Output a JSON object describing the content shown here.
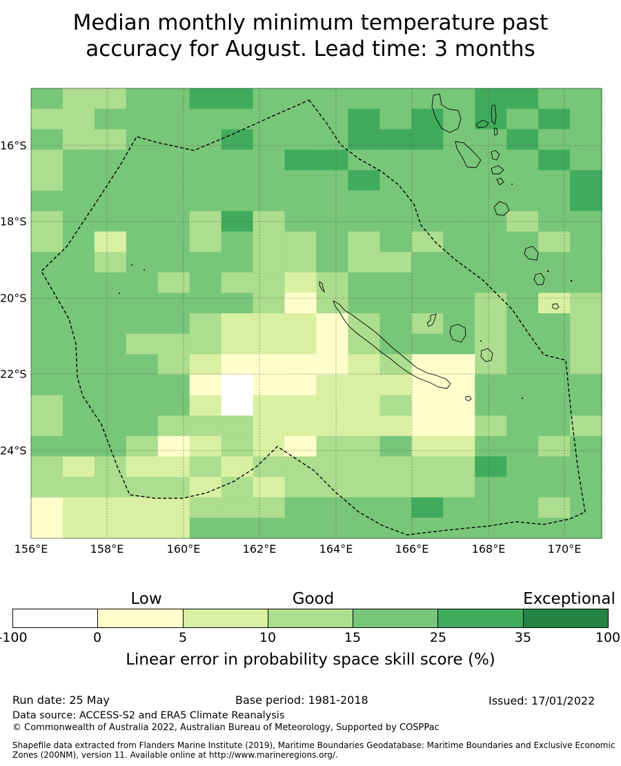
{
  "title": {
    "line1": "Median monthly minimum temperature past",
    "line2": "accuracy for August. Lead time: 3 months"
  },
  "map": {
    "lon_labels": [
      "156°E",
      "158°E",
      "160°E",
      "162°E",
      "164°E",
      "166°E",
      "168°E",
      "170°E"
    ],
    "lat_labels": [
      "16°S",
      "18°S",
      "20°S",
      "22°S",
      "24°S"
    ],
    "colors": [
      "#ffffff",
      "#ffffcc",
      "#d9f0a3",
      "#addd8e",
      "#78c679",
      "#41ab5d",
      "#238443"
    ],
    "skill_grid": [
      [
        4,
        3,
        3,
        4,
        4,
        5,
        5,
        4,
        4,
        4,
        4,
        4,
        4,
        4,
        5,
        5,
        4,
        4
      ],
      [
        3,
        3,
        4,
        4,
        4,
        4,
        4,
        4,
        4,
        4,
        5,
        4,
        5,
        4,
        5,
        4,
        5,
        4
      ],
      [
        4,
        3,
        3,
        4,
        4,
        4,
        5,
        4,
        4,
        4,
        5,
        5,
        5,
        4,
        4,
        5,
        4,
        4
      ],
      [
        3,
        4,
        4,
        4,
        4,
        4,
        4,
        4,
        5,
        5,
        4,
        4,
        4,
        4,
        4,
        4,
        5,
        4
      ],
      [
        3,
        4,
        4,
        4,
        4,
        4,
        4,
        4,
        4,
        4,
        5,
        4,
        4,
        4,
        4,
        4,
        4,
        5
      ],
      [
        4,
        4,
        4,
        4,
        4,
        4,
        4,
        4,
        4,
        4,
        4,
        4,
        4,
        4,
        4,
        4,
        4,
        5
      ],
      [
        3,
        4,
        4,
        4,
        4,
        3,
        5,
        3,
        4,
        4,
        4,
        4,
        4,
        4,
        4,
        3,
        4,
        4
      ],
      [
        3,
        4,
        2,
        4,
        4,
        3,
        4,
        3,
        3,
        4,
        3,
        4,
        3,
        4,
        4,
        4,
        3,
        4
      ],
      [
        4,
        4,
        3,
        4,
        4,
        4,
        4,
        3,
        3,
        4,
        3,
        3,
        4,
        4,
        4,
        4,
        4,
        4
      ],
      [
        4,
        4,
        4,
        4,
        3,
        4,
        3,
        3,
        2,
        3,
        4,
        4,
        4,
        4,
        4,
        4,
        4,
        4
      ],
      [
        4,
        4,
        4,
        4,
        4,
        4,
        4,
        3,
        1,
        3,
        4,
        4,
        4,
        4,
        3,
        4,
        2,
        3
      ],
      [
        4,
        4,
        4,
        4,
        4,
        3,
        2,
        2,
        2,
        1,
        3,
        4,
        3,
        4,
        3,
        4,
        4,
        3
      ],
      [
        4,
        4,
        4,
        3,
        3,
        3,
        2,
        2,
        2,
        1,
        3,
        4,
        4,
        4,
        3,
        4,
        4,
        3
      ],
      [
        4,
        4,
        4,
        4,
        3,
        2,
        1,
        1,
        1,
        1,
        2,
        3,
        1,
        1,
        3,
        4,
        4,
        3
      ],
      [
        4,
        4,
        4,
        4,
        4,
        1,
        0,
        1,
        1,
        2,
        2,
        2,
        1,
        1,
        4,
        4,
        4,
        4
      ],
      [
        3,
        4,
        4,
        4,
        4,
        2,
        0,
        2,
        2,
        2,
        2,
        3,
        1,
        1,
        4,
        4,
        4,
        4
      ],
      [
        3,
        4,
        4,
        4,
        3,
        3,
        3,
        2,
        2,
        2,
        2,
        2,
        1,
        1,
        3,
        4,
        4,
        3
      ],
      [
        4,
        4,
        4,
        3,
        1,
        2,
        3,
        2,
        1,
        3,
        3,
        4,
        2,
        2,
        4,
        4,
        3,
        4
      ],
      [
        3,
        2,
        3,
        2,
        2,
        3,
        2,
        3,
        3,
        3,
        3,
        3,
        3,
        3,
        5,
        4,
        4,
        4
      ],
      [
        3,
        3,
        3,
        3,
        3,
        2,
        3,
        2,
        3,
        3,
        3,
        3,
        3,
        3,
        4,
        4,
        4,
        4
      ],
      [
        1,
        2,
        2,
        2,
        2,
        3,
        3,
        3,
        4,
        4,
        4,
        4,
        5,
        4,
        4,
        4,
        3,
        4
      ],
      [
        1,
        2,
        2,
        2,
        2,
        4,
        4,
        4,
        4,
        4,
        4,
        4,
        4,
        4,
        4,
        4,
        4,
        4
      ]
    ]
  },
  "legend": {
    "categories": [
      "Low",
      "Good",
      "Exceptional"
    ],
    "ticks": [
      "-100",
      "0",
      "5",
      "10",
      "15",
      "25",
      "35",
      "100"
    ],
    "label": "Linear error in probability space skill score (%)"
  },
  "footer": {
    "run_date": "Run date: 25 May",
    "base_period": "Base period: 1981-2018",
    "issued": "Issued: 17/01/2022",
    "data_source": "Data source: ACCESS-S2 and ERA5 Climate Reanalysis",
    "copyright": "© Commonwealth of Australia 2022, Australian Bureau of Meteorology, Supported by COSPPac",
    "shapefile": "Shapefile data extracted from Flanders Marine Institute (2019), Maritime Boundaries Geodatabase: Maritime Boundaries and Exclusive Economic Zones (200NM), version 11. Available online at http://www.marineregions.org/."
  }
}
